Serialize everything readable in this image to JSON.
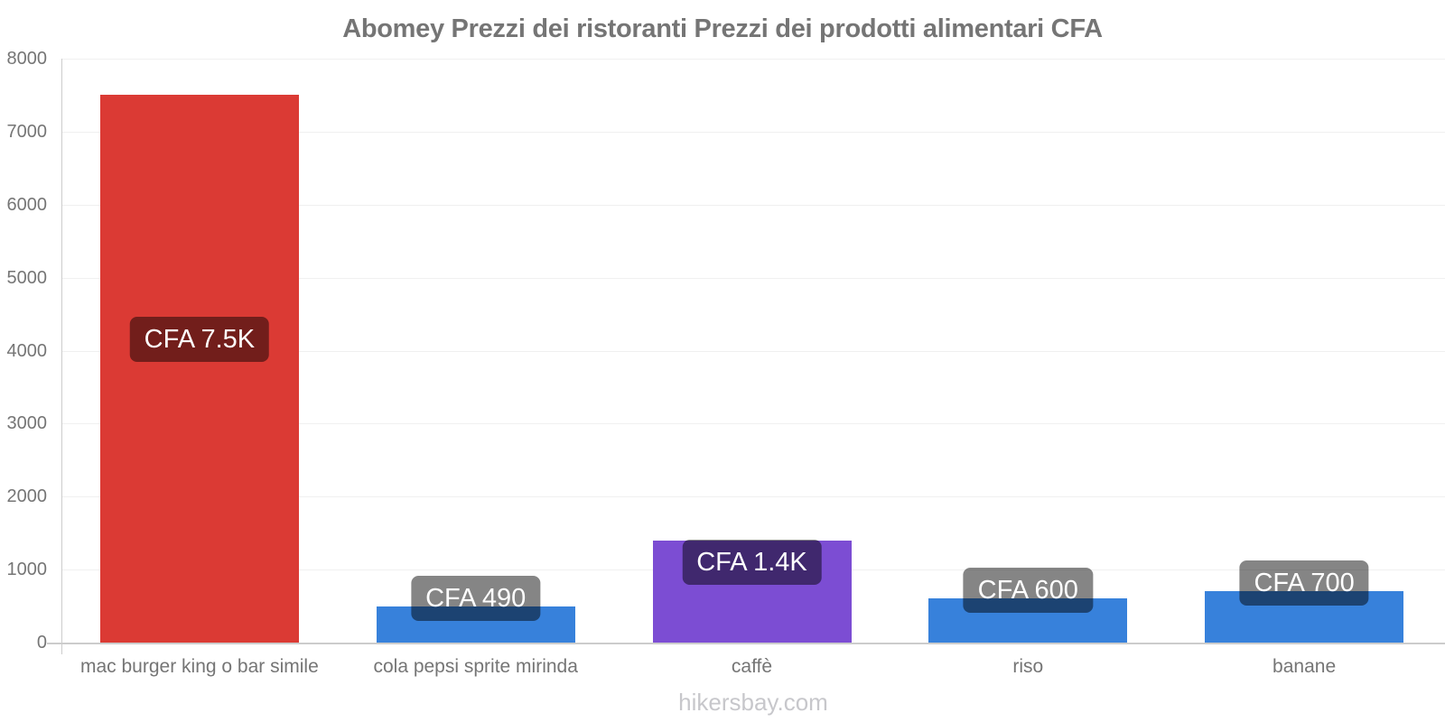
{
  "title": "Abomey Prezzi dei ristoranti Prezzi dei prodotti alimentari CFA",
  "footer": "hikersbay.com",
  "colors": {
    "background": "#ffffff",
    "title_text": "#757575",
    "axis_line": "#cccccc",
    "gridline": "#f0f0f0",
    "tick_text": "#757575",
    "category_text": "#757575",
    "value_label_bg": "rgba(0,0,0,0.48)",
    "value_label_text": "#ffffff",
    "watermark_text": "#c7c7cb",
    "bar_red": "#db3a34",
    "bar_blue": "#3781db",
    "bar_purple": "#7c4dd3"
  },
  "chart_data": {
    "type": "bar",
    "title": "Abomey Prezzi dei ristoranti Prezzi dei prodotti alimentari CFA",
    "xlabel": "",
    "ylabel": "",
    "currency": "CFA",
    "categories": [
      "mac burger king o bar simile",
      "cola pepsi sprite mirinda",
      "caffè",
      "riso",
      "banane"
    ],
    "values": [
      7500,
      490,
      1400,
      600,
      700
    ],
    "bar_labels": [
      "CFA 7.5K",
      "CFA 490",
      "CFA 1.4K",
      "CFA 600",
      "CFA 700"
    ],
    "bar_colors": [
      "#db3a34",
      "#3781db",
      "#7c4dd3",
      "#3781db",
      "#3781db"
    ],
    "ylim": [
      0,
      8000
    ],
    "ytick_interval": 1000,
    "yticks": [
      0,
      1000,
      2000,
      3000,
      4000,
      5000,
      6000,
      7000,
      8000
    ],
    "grid": "horizontal",
    "legend_position": "none",
    "watermark": "hikersbay.com"
  }
}
